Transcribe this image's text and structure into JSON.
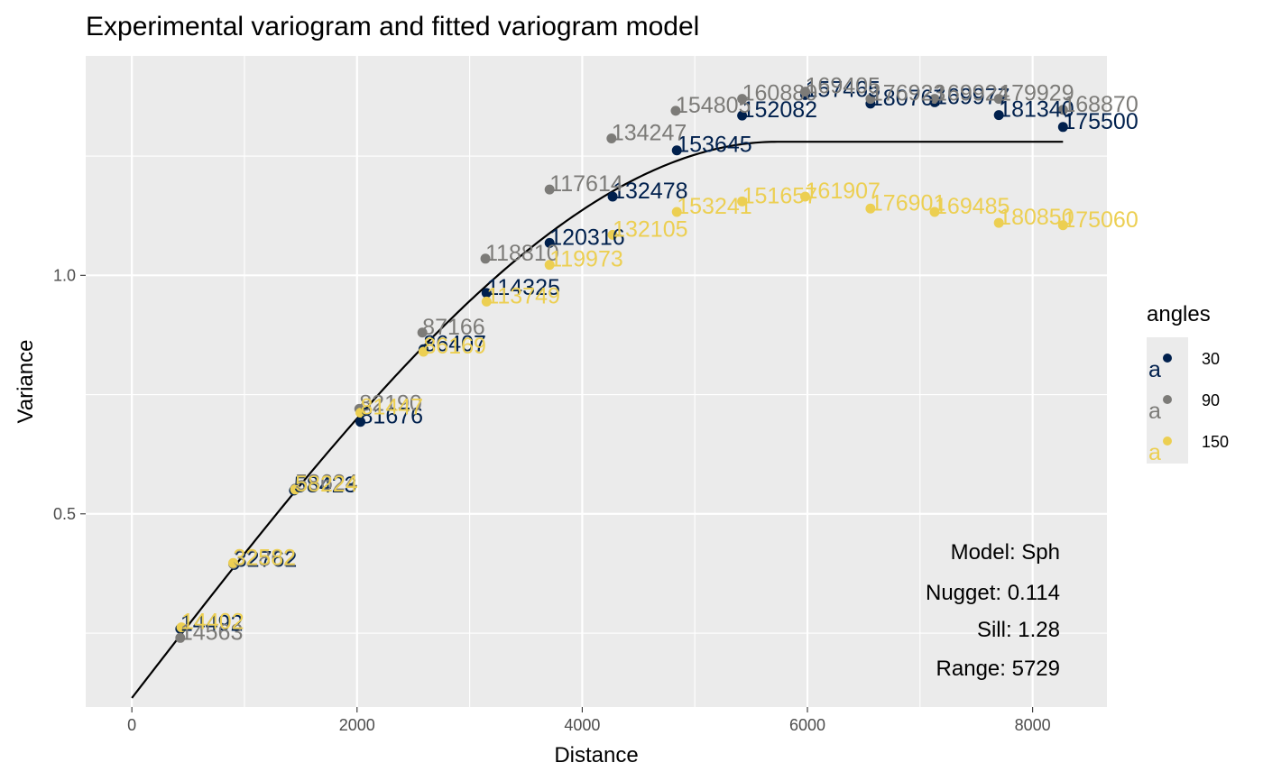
{
  "chart_data": {
    "type": "scatter",
    "title": "Experimental variogram and fitted variogram model",
    "xlabel": "Distance",
    "ylabel": "Variance",
    "xlim": [
      -410,
      8660
    ],
    "ylim": [
      0.095,
      1.46
    ],
    "x_ticks": [
      0,
      2000,
      4000,
      6000,
      8000
    ],
    "y_ticks": [
      0.5,
      1.0
    ],
    "x_tick_labels": [
      "0",
      "2000",
      "4000",
      "6000",
      "8000"
    ],
    "y_tick_labels": [
      "0.5",
      "1.0"
    ],
    "grid": true,
    "legend": {
      "title": "angles",
      "position": "right",
      "entries": [
        {
          "label": "30",
          "color": "#00204d"
        },
        {
          "label": "90",
          "color": "#7c7b78"
        },
        {
          "label": "150",
          "color": "#eccf52"
        }
      ],
      "key_glyph": "a"
    },
    "series": [
      {
        "name": "30",
        "color": "#00204d",
        "points": [
          {
            "x": 430,
            "y": 0.259,
            "label": "14492"
          },
          {
            "x": 910,
            "y": 0.393,
            "label": "32762"
          },
          {
            "x": 1440,
            "y": 0.549,
            "label": "58423"
          },
          {
            "x": 2030,
            "y": 0.693,
            "label": "81676"
          },
          {
            "x": 2590,
            "y": 0.845,
            "label": "86407"
          },
          {
            "x": 3150,
            "y": 0.963,
            "label": "114325"
          },
          {
            "x": 3710,
            "y": 1.068,
            "label": "120316"
          },
          {
            "x": 4270,
            "y": 1.165,
            "label": "132478"
          },
          {
            "x": 4840,
            "y": 1.262,
            "label": "153645"
          },
          {
            "x": 5420,
            "y": 1.335,
            "label": "152082"
          },
          {
            "x": 5980,
            "y": 1.378,
            "label": "157465"
          },
          {
            "x": 6560,
            "y": 1.36,
            "label": "180767"
          },
          {
            "x": 7130,
            "y": 1.363,
            "label": "169977"
          },
          {
            "x": 7700,
            "y": 1.336,
            "label": "181340"
          },
          {
            "x": 8270,
            "y": 1.311,
            "label": "175500"
          }
        ]
      },
      {
        "name": "90",
        "color": "#7c7b78",
        "points": [
          {
            "x": 430,
            "y": 0.24,
            "label": "14563"
          },
          {
            "x": 900,
            "y": 0.395,
            "label": "32862"
          },
          {
            "x": 1450,
            "y": 0.553,
            "label": "58624"
          },
          {
            "x": 2020,
            "y": 0.72,
            "label": "82190"
          },
          {
            "x": 2580,
            "y": 0.88,
            "label": "87166"
          },
          {
            "x": 3140,
            "y": 1.035,
            "label": "118810"
          },
          {
            "x": 3710,
            "y": 1.18,
            "label": "117614"
          },
          {
            "x": 4260,
            "y": 1.287,
            "label": "134247"
          },
          {
            "x": 4830,
            "y": 1.345,
            "label": "154805"
          },
          {
            "x": 5420,
            "y": 1.37,
            "label": "160880"
          },
          {
            "x": 5980,
            "y": 1.385,
            "label": "169405"
          },
          {
            "x": 6560,
            "y": 1.37,
            "label": "176923"
          },
          {
            "x": 7130,
            "y": 1.37,
            "label": "169924"
          },
          {
            "x": 7700,
            "y": 1.37,
            "label": "179929"
          },
          {
            "x": 8270,
            "y": 1.347,
            "label": "168870"
          }
        ]
      },
      {
        "name": "150",
        "color": "#eccf52",
        "points": [
          {
            "x": 440,
            "y": 0.262,
            "label": "14402"
          },
          {
            "x": 900,
            "y": 0.397,
            "label": "32582"
          },
          {
            "x": 1450,
            "y": 0.551,
            "label": "58224"
          },
          {
            "x": 2030,
            "y": 0.712,
            "label": "81447"
          },
          {
            "x": 2590,
            "y": 0.84,
            "label": "86169"
          },
          {
            "x": 3150,
            "y": 0.945,
            "label": "113749"
          },
          {
            "x": 3710,
            "y": 1.022,
            "label": "119973"
          },
          {
            "x": 4270,
            "y": 1.085,
            "label": "132105"
          },
          {
            "x": 4840,
            "y": 1.133,
            "label": "153241"
          },
          {
            "x": 5420,
            "y": 1.155,
            "label": "151657"
          },
          {
            "x": 5980,
            "y": 1.165,
            "label": "161907"
          },
          {
            "x": 6560,
            "y": 1.14,
            "label": "176901"
          },
          {
            "x": 7130,
            "y": 1.133,
            "label": "169485"
          },
          {
            "x": 7700,
            "y": 1.11,
            "label": "180850"
          },
          {
            "x": 8270,
            "y": 1.105,
            "label": "175060"
          }
        ]
      }
    ],
    "model": {
      "type": "Sph",
      "nugget": 0.114,
      "sill": 1.28,
      "range": 5729,
      "x_max": 8270,
      "color": "#000000"
    },
    "annotations": [
      "Model: Sph",
      "Nugget: 0.114",
      "Sill: 1.28",
      "Range: 5729"
    ]
  }
}
